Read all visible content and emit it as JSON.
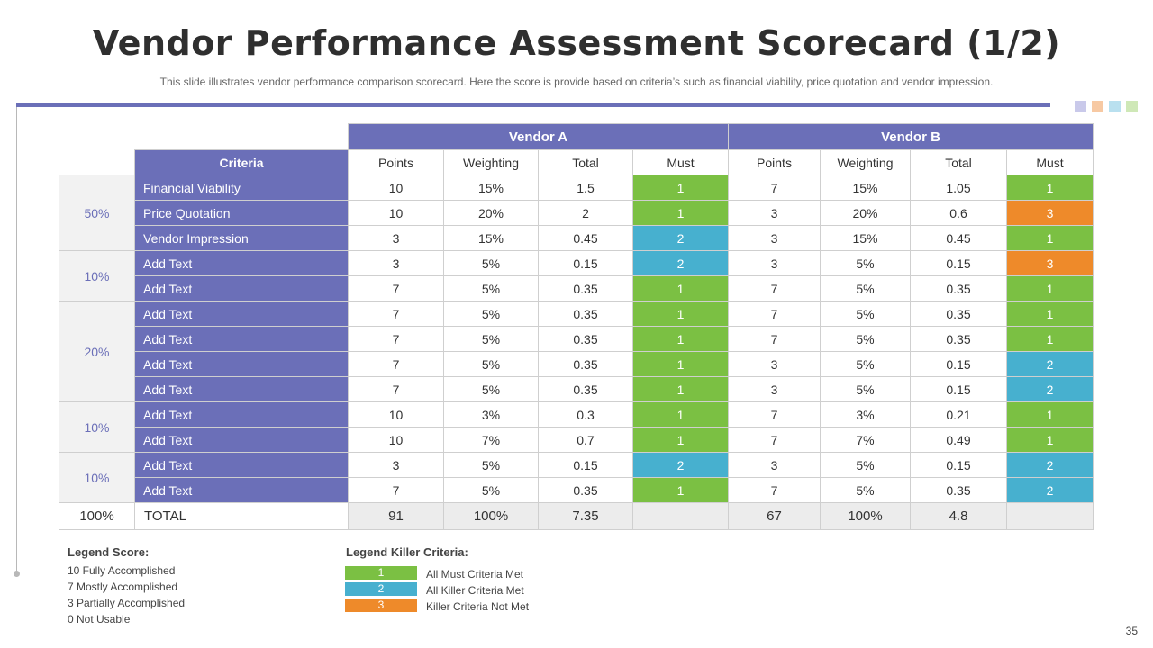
{
  "title": "Vendor Performance Assessment Scorecard (1/2)",
  "subtitle": "This slide illustrates vendor  performance  comparison scorecard. Here the score is provide  based on criteria’s such as financial viability, price quotation and vendor  impression.",
  "colors": {
    "accent": "#6b6fb8",
    "must_1": "#7bc043",
    "must_2": "#47b0cf",
    "must_3": "#ee8a2a"
  },
  "decor_squares": [
    "#c9c9ea",
    "#f7c9a3",
    "#b9e0ef",
    "#cfe8b7"
  ],
  "table": {
    "vendors": [
      "Vendor A",
      "Vendor B"
    ],
    "criteria_header": "Criteria",
    "sub_headers": [
      "Points",
      "Weighting",
      "Total",
      "Must"
    ],
    "groups": [
      {
        "weight": "50%",
        "rows": [
          {
            "criteria": "Financial Viability",
            "a": [
              "10",
              "15%",
              "1.5",
              "1"
            ],
            "b": [
              "7",
              "15%",
              "1.05",
              "1"
            ]
          },
          {
            "criteria": "Price Quotation",
            "a": [
              "10",
              "20%",
              "2",
              "1"
            ],
            "b": [
              "3",
              "20%",
              "0.6",
              "3"
            ]
          },
          {
            "criteria": "Vendor Impression",
            "a": [
              "3",
              "15%",
              "0.45",
              "2"
            ],
            "b": [
              "3",
              "15%",
              "0.45",
              "1"
            ]
          }
        ]
      },
      {
        "weight": "10%",
        "rows": [
          {
            "criteria": "Add Text",
            "a": [
              "3",
              "5%",
              "0.15",
              "2"
            ],
            "b": [
              "3",
              "5%",
              "0.15",
              "3"
            ]
          },
          {
            "criteria": "Add Text",
            "a": [
              "7",
              "5%",
              "0.35",
              "1"
            ],
            "b": [
              "7",
              "5%",
              "0.35",
              "1"
            ]
          }
        ]
      },
      {
        "weight": "20%",
        "rows": [
          {
            "criteria": "Add Text",
            "a": [
              "7",
              "5%",
              "0.35",
              "1"
            ],
            "b": [
              "7",
              "5%",
              "0.35",
              "1"
            ]
          },
          {
            "criteria": "Add Text",
            "a": [
              "7",
              "5%",
              "0.35",
              "1"
            ],
            "b": [
              "7",
              "5%",
              "0.35",
              "1"
            ]
          },
          {
            "criteria": "Add Text",
            "a": [
              "7",
              "5%",
              "0.35",
              "1"
            ],
            "b": [
              "3",
              "5%",
              "0.15",
              "2"
            ]
          },
          {
            "criteria": "Add Text",
            "a": [
              "7",
              "5%",
              "0.35",
              "1"
            ],
            "b": [
              "3",
              "5%",
              "0.15",
              "2"
            ]
          }
        ]
      },
      {
        "weight": "10%",
        "rows": [
          {
            "criteria": "Add Text",
            "a": [
              "10",
              "3%",
              "0.3",
              "1"
            ],
            "b": [
              "7",
              "3%",
              "0.21",
              "1"
            ]
          },
          {
            "criteria": "Add Text",
            "a": [
              "10",
              "7%",
              "0.7",
              "1"
            ],
            "b": [
              "7",
              "7%",
              "0.49",
              "1"
            ]
          }
        ]
      },
      {
        "weight": "10%",
        "rows": [
          {
            "criteria": "Add Text",
            "a": [
              "3",
              "5%",
              "0.15",
              "2"
            ],
            "b": [
              "3",
              "5%",
              "0.15",
              "2"
            ]
          },
          {
            "criteria": "Add Text",
            "a": [
              "7",
              "5%",
              "0.35",
              "1"
            ],
            "b": [
              "7",
              "5%",
              "0.35",
              "2"
            ]
          }
        ]
      }
    ],
    "total": {
      "weight": "100%",
      "label": "TOTAL",
      "a": [
        "91",
        "100%",
        "7.35",
        ""
      ],
      "b": [
        "67",
        "100%",
        "4.8",
        ""
      ]
    }
  },
  "legend_score": {
    "title": "Legend Score:",
    "items": [
      "10 Fully Accomplished",
      "7 Mostly Accomplished",
      "3 Partially Accomplished",
      "0 Not Usable"
    ]
  },
  "legend_killer": {
    "title": "Legend Killer Criteria:",
    "items": [
      {
        "value": "1",
        "label": "All Must Criteria Met"
      },
      {
        "value": "2",
        "label": "All Killer Criteria Met"
      },
      {
        "value": "3",
        "label": "Killer Criteria Not Met"
      }
    ]
  },
  "page_number": "35"
}
